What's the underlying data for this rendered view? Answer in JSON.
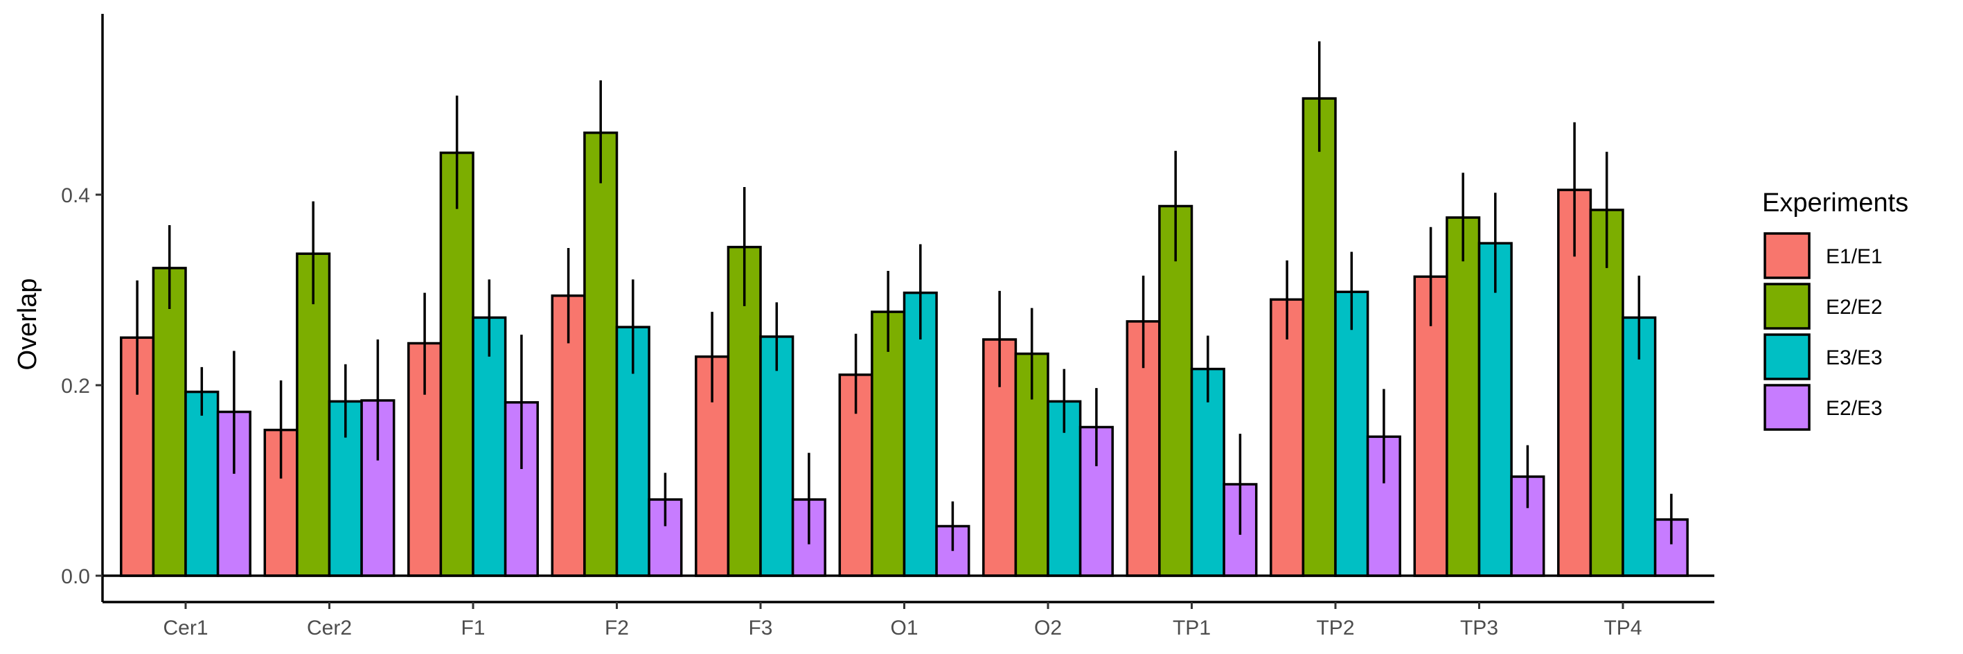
{
  "chart_data": {
    "type": "bar",
    "title": "",
    "xlabel": "",
    "ylabel": "Overlap",
    "ylim": [
      0,
      0.58
    ],
    "yticks": [
      0.0,
      0.2,
      0.4
    ],
    "ytick_labels": [
      "0.0",
      "0.2",
      "0.4"
    ],
    "grid": false,
    "legend_position": "right",
    "legend_title": "Experiments",
    "categories": [
      "Cer1",
      "Cer2",
      "F1",
      "F2",
      "F3",
      "O1",
      "O2",
      "TP1",
      "TP2",
      "TP3",
      "TP4"
    ],
    "series": [
      {
        "name": "E1/E1",
        "color": "#F8766D",
        "values": [
          0.25,
          0.153,
          0.244,
          0.294,
          0.23,
          0.211,
          0.248,
          0.267,
          0.29,
          0.314,
          0.405
        ],
        "error_low": [
          0.19,
          0.102,
          0.19,
          0.244,
          0.182,
          0.17,
          0.198,
          0.218,
          0.248,
          0.262,
          0.335
        ],
        "error_high": [
          0.31,
          0.205,
          0.297,
          0.344,
          0.277,
          0.254,
          0.299,
          0.315,
          0.331,
          0.366,
          0.476
        ]
      },
      {
        "name": "E2/E2",
        "color": "#7CAE00",
        "values": [
          0.323,
          0.338,
          0.444,
          0.465,
          0.345,
          0.277,
          0.233,
          0.388,
          0.501,
          0.376,
          0.384
        ],
        "error_low": [
          0.28,
          0.285,
          0.385,
          0.412,
          0.283,
          0.235,
          0.185,
          0.33,
          0.445,
          0.33,
          0.323
        ],
        "error_high": [
          0.368,
          0.393,
          0.504,
          0.52,
          0.408,
          0.32,
          0.281,
          0.446,
          0.561,
          0.423,
          0.445
        ]
      },
      {
        "name": "E3/E3",
        "color": "#00BFC4",
        "values": [
          0.193,
          0.183,
          0.271,
          0.261,
          0.251,
          0.297,
          0.183,
          0.217,
          0.298,
          0.349,
          0.271
        ],
        "error_low": [
          0.168,
          0.145,
          0.23,
          0.212,
          0.215,
          0.248,
          0.15,
          0.182,
          0.258,
          0.297,
          0.227
        ],
        "error_high": [
          0.219,
          0.222,
          0.311,
          0.311,
          0.287,
          0.348,
          0.217,
          0.252,
          0.34,
          0.402,
          0.315
        ]
      },
      {
        "name": "E2/E3",
        "color": "#C77CFF",
        "values": [
          0.172,
          0.184,
          0.182,
          0.08,
          0.08,
          0.052,
          0.156,
          0.096,
          0.146,
          0.104,
          0.059
        ],
        "error_low": [
          0.107,
          0.121,
          0.112,
          0.052,
          0.033,
          0.026,
          0.115,
          0.043,
          0.097,
          0.071,
          0.033
        ],
        "error_high": [
          0.236,
          0.248,
          0.253,
          0.108,
          0.129,
          0.078,
          0.197,
          0.149,
          0.196,
          0.137,
          0.086
        ]
      }
    ]
  }
}
